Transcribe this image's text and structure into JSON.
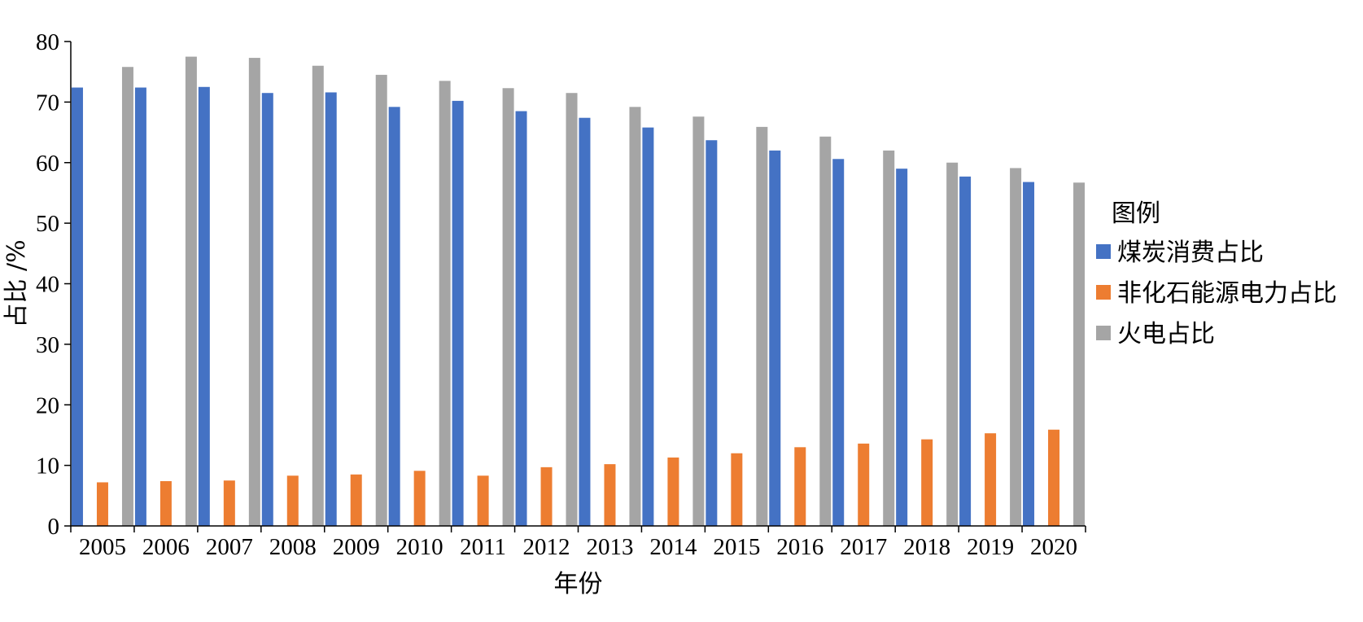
{
  "chart_data": {
    "type": "bar",
    "title": "",
    "xlabel": "年份",
    "ylabel": "占比 /%",
    "ylim": [
      0,
      80
    ],
    "yticks": [
      "0",
      "10",
      "20",
      "30",
      "40",
      "50",
      "60",
      "70",
      "80"
    ],
    "grid": false,
    "legend_title": "图例",
    "legend_position": "right",
    "categories": [
      "2005",
      "2006",
      "2007",
      "2008",
      "2009",
      "2010",
      "2011",
      "2012",
      "2013",
      "2014",
      "2015",
      "2016",
      "2017",
      "2018",
      "2019",
      "2020"
    ],
    "series": [
      {
        "name": "煤炭消费占比",
        "color": "#4472C4",
        "values": [
          72.4,
          72.4,
          72.5,
          71.5,
          71.6,
          69.2,
          70.2,
          68.5,
          67.4,
          65.8,
          63.7,
          62.0,
          60.6,
          59.0,
          57.7,
          56.8
        ]
      },
      {
        "name": "非化石能源电力占比",
        "color": "#ED7D31",
        "values": [
          7.2,
          7.4,
          7.5,
          8.3,
          8.5,
          9.1,
          8.3,
          9.7,
          10.2,
          11.3,
          12.0,
          13.0,
          13.6,
          14.3,
          15.3,
          15.9
        ]
      },
      {
        "name": "火电占比",
        "color": "#A5A5A5",
        "values": [
          75.8,
          77.5,
          77.3,
          76.0,
          74.5,
          73.5,
          72.3,
          71.5,
          69.2,
          67.6,
          65.9,
          64.3,
          62.0,
          60.0,
          59.1,
          56.7
        ]
      }
    ]
  }
}
